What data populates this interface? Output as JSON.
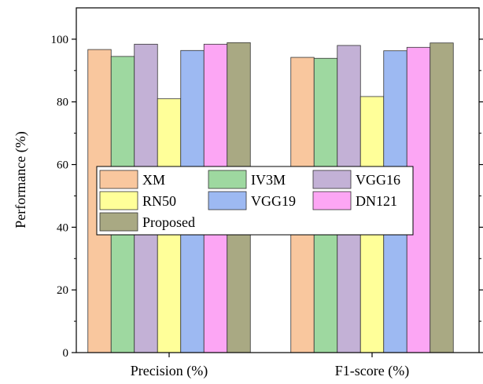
{
  "chart_data": {
    "type": "bar",
    "categories": [
      "Precision (%)",
      "F1-score (%)"
    ],
    "series": [
      {
        "name": "XM",
        "values": [
          96.7,
          94.2
        ],
        "color": "#F9C79E"
      },
      {
        "name": "IV3M",
        "values": [
          94.5,
          93.9
        ],
        "color": "#9ED8A0"
      },
      {
        "name": "VGG16",
        "values": [
          98.4,
          98.0
        ],
        "color": "#C3B1D6"
      },
      {
        "name": "RN50",
        "values": [
          81.0,
          81.7
        ],
        "color": "#FFFF99"
      },
      {
        "name": "VGG19",
        "values": [
          96.4,
          96.3
        ],
        "color": "#9DB9F2"
      },
      {
        "name": "DN121",
        "values": [
          98.4,
          97.4
        ],
        "color": "#FCA6F4"
      },
      {
        "name": "Proposed",
        "values": [
          98.9,
          98.8
        ],
        "color": "#A9A983"
      }
    ],
    "ylabel": "Performance (%)",
    "xlabel": "",
    "ylim": [
      0,
      110
    ],
    "yticks": [
      0,
      20,
      40,
      60,
      80,
      100
    ],
    "grid": false,
    "legend_position": "center-left"
  }
}
